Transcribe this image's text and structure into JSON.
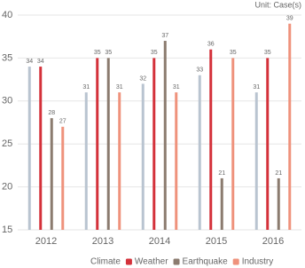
{
  "chart_data": {
    "type": "bar",
    "unit_label": "Unit: Case(s)",
    "categories": [
      "2012",
      "2013",
      "2014",
      "2015",
      "2016"
    ],
    "series": [
      {
        "name": "Climate",
        "color": "#b9c4d0",
        "values": [
          34,
          31,
          32,
          33,
          31
        ]
      },
      {
        "name": "Weather",
        "color": "#d4313a",
        "values": [
          34,
          35,
          35,
          36,
          35
        ]
      },
      {
        "name": "Earthquake",
        "color": "#8b7b6f",
        "values": [
          28,
          35,
          37,
          21,
          21
        ]
      },
      {
        "name": "Industry",
        "color": "#ef927c",
        "values": [
          27,
          31,
          31,
          35,
          39
        ]
      }
    ],
    "ylim": [
      15,
      40
    ],
    "yticks": [
      15,
      20,
      25,
      30,
      35,
      40
    ],
    "grid": true,
    "legend": "bottom"
  }
}
